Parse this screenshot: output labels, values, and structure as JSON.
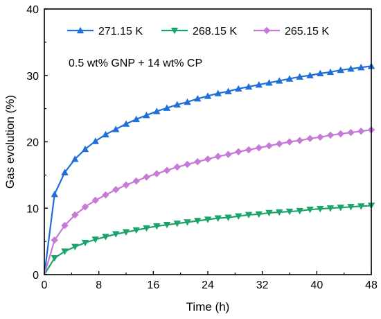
{
  "chart_data": {
    "type": "line",
    "xlabel": "Time (h)",
    "ylabel": "Gas evolution (%)",
    "xlim": [
      0,
      48
    ],
    "ylim": [
      0,
      40
    ],
    "xticks": [
      0,
      8,
      16,
      24,
      32,
      40,
      48
    ],
    "yticks": [
      0,
      10,
      20,
      30,
      40
    ],
    "grid": false,
    "legend_position": "top",
    "annotation": "0.5 wt% GNP + 14 wt% CP",
    "x": [
      0,
      1.5,
      3,
      4.5,
      6,
      7.5,
      9,
      10.5,
      12,
      13.5,
      15,
      16.5,
      18,
      19.5,
      21,
      22.5,
      24,
      25.5,
      27,
      28.5,
      30,
      31.5,
      33,
      34.5,
      36,
      37.5,
      39,
      40.5,
      42,
      43.5,
      45,
      46.5,
      48
    ],
    "series": [
      {
        "name": "271.15 K",
        "color": "#1f6fd6",
        "marker": "triangle-up",
        "values": [
          0,
          12.1,
          15.4,
          17.4,
          18.9,
          20.1,
          21.1,
          21.9,
          22.7,
          23.4,
          24.0,
          24.6,
          25.1,
          25.6,
          26.0,
          26.5,
          26.9,
          27.3,
          27.6,
          28.0,
          28.3,
          28.6,
          28.9,
          29.2,
          29.5,
          29.8,
          30.0,
          30.3,
          30.5,
          30.8,
          31.0,
          31.2,
          31.4
        ]
      },
      {
        "name": "268.15 K",
        "color": "#1aa36a",
        "marker": "triangle-down",
        "values": [
          0,
          2.5,
          3.5,
          4.2,
          4.8,
          5.3,
          5.7,
          6.1,
          6.4,
          6.7,
          7.0,
          7.3,
          7.5,
          7.7,
          7.9,
          8.1,
          8.3,
          8.5,
          8.6,
          8.8,
          9.0,
          9.1,
          9.3,
          9.4,
          9.5,
          9.6,
          9.8,
          9.9,
          10.0,
          10.1,
          10.2,
          10.3,
          10.4
        ]
      },
      {
        "name": "265.15 K",
        "color": "#c57ad8",
        "marker": "diamond",
        "values": [
          0,
          5.2,
          7.4,
          9.0,
          10.2,
          11.2,
          12.0,
          12.8,
          13.5,
          14.1,
          14.7,
          15.2,
          15.7,
          16.2,
          16.6,
          17.0,
          17.4,
          17.8,
          18.1,
          18.5,
          18.8,
          19.1,
          19.4,
          19.7,
          20.0,
          20.2,
          20.5,
          20.7,
          21.0,
          21.2,
          21.4,
          21.6,
          21.8
        ]
      }
    ]
  }
}
